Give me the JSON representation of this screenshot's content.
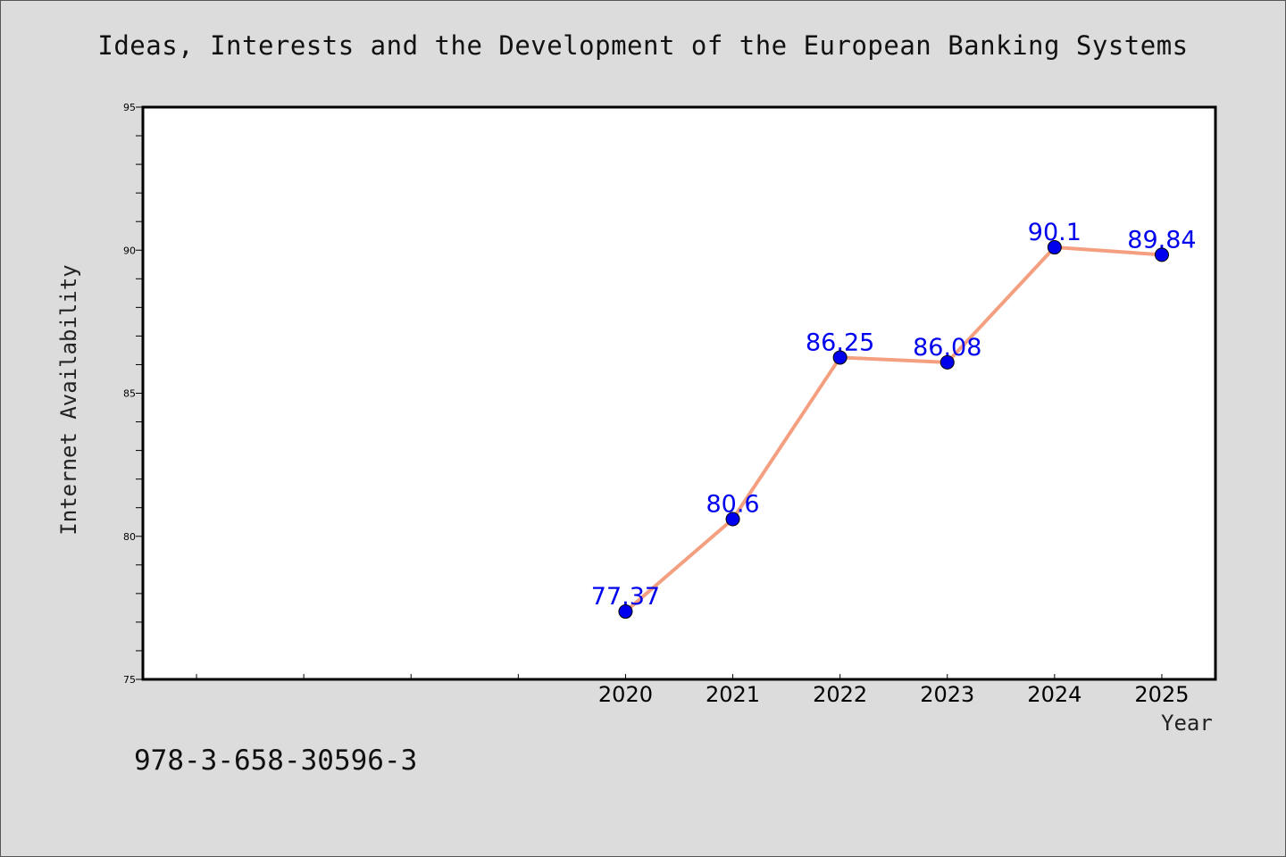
{
  "chart_data": {
    "type": "line",
    "title": "Ideas, Interests and the Development of the European Banking Systems",
    "xlabel": "Year",
    "ylabel": "Internet Availability",
    "categories": [
      "2020",
      "2021",
      "2022",
      "2023",
      "2024",
      "2025"
    ],
    "x_ticks": [
      "",
      "",
      "",
      "",
      "2020",
      "2021",
      "2022",
      "2023",
      "2024",
      "2025"
    ],
    "series": [
      {
        "values": [
          77.37,
          80.6,
          86.25,
          86.08,
          90.1,
          89.84
        ],
        "labels": [
          "77.37",
          "80.6",
          "86.25",
          "86.08",
          "90.1",
          "89.84"
        ],
        "line_color": "#f4a080",
        "marker_color": "#0000ee"
      }
    ],
    "ylim": [
      75,
      95
    ],
    "y_ticks": [
      "75",
      "80",
      "85",
      "90",
      "95"
    ],
    "grid": false,
    "label_color": "#0000ee"
  },
  "footer": {
    "isbn": "978-3-658-30596-3"
  },
  "colors": {
    "background": "#dcdcdc",
    "plot_area": "#ffffff"
  }
}
